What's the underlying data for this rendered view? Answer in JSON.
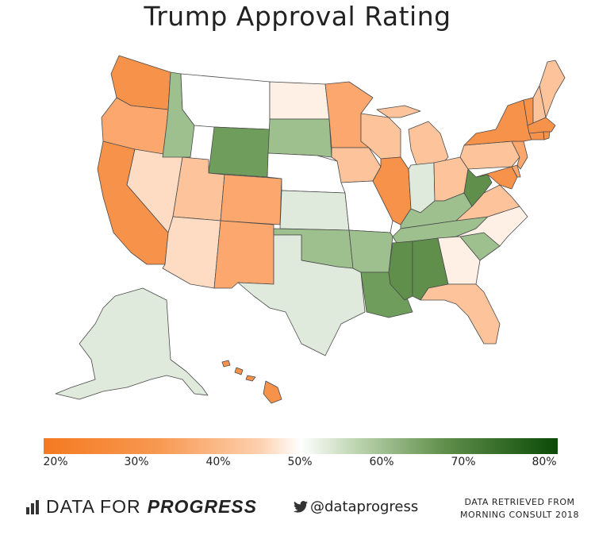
{
  "title": "Trump Approval Rating",
  "legend": {
    "ticks": [
      "20%",
      "30%",
      "40%",
      "50%",
      "60%",
      "70%",
      "80%"
    ],
    "color_low": "#f47a20",
    "color_mid": "#ffffff",
    "color_high": "#0b4a07"
  },
  "footer": {
    "brand_regular": "DATA FOR",
    "brand_bold": "PROGRESS",
    "handle": "@dataprogress",
    "source_line1": "DATA RETRIEVED FROM",
    "source_line2": "MORNING CONSULT 2018"
  },
  "colors": {
    "orange_strong": "#f7924a",
    "orange_medium": "#fba76e",
    "orange_light": "#fdc49c",
    "peach": "#fedcc4",
    "cream": "#fff0e6",
    "white": "#ffffff",
    "green_pale": "#dfe9dc",
    "green_light": "#9ec08f",
    "green_medium": "#6f9d5b",
    "green_dark": "#5f8f4a",
    "border": "#333333"
  }
}
